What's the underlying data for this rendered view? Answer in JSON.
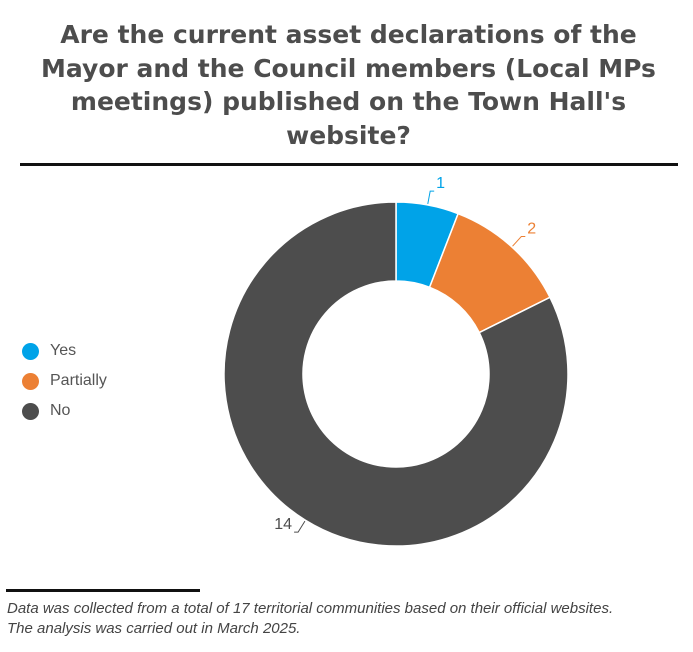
{
  "title": "Are the current asset declarations of the Mayor and the Council members (Local MPs meetings) published on the Town Hall's website?",
  "chart_data": {
    "type": "pie",
    "donut": true,
    "categories": [
      "Yes",
      "Partially",
      "No"
    ],
    "values": [
      1,
      2,
      14
    ],
    "colors": [
      "#00a3e8",
      "#ec8034",
      "#4d4d4d"
    ],
    "data_labels": [
      "1",
      "2",
      "14"
    ],
    "legend_position": "left",
    "legend": [
      {
        "label": "Yes",
        "color": "#00a3e8"
      },
      {
        "label": "Partially",
        "color": "#ec8034"
      },
      {
        "label": "No",
        "color": "#4d4d4d"
      }
    ]
  },
  "footnote": [
    "Data was collected from a total of 17 territorial communities based on their official websites.",
    "The analysis was carried out in March 2025."
  ]
}
